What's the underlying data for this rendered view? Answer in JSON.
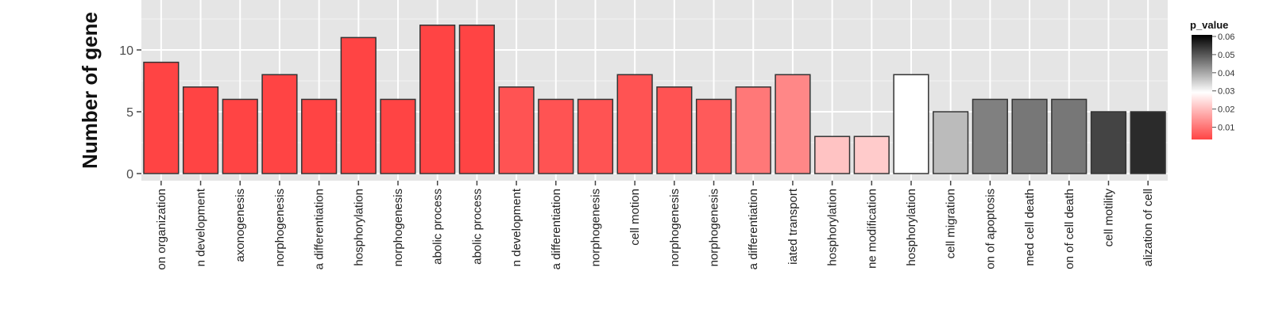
{
  "chart_data": {
    "type": "bar",
    "ylabel": "Number of gene",
    "ylim": [
      0,
      14
    ],
    "y_ticks": [
      0,
      5,
      10
    ],
    "grid": true,
    "legend_placement": "right",
    "categories": [
      "on organization",
      "n development",
      "axonogenesis",
      "norphogenesis",
      "a differentiation",
      "hosphorylation",
      "norphogenesis",
      "abolic process",
      "abolic process",
      "n development",
      "a differentiation",
      "norphogenesis",
      "cell motion",
      "norphogenesis",
      "norphogenesis",
      "a differentiation",
      "iated transport",
      "hosphorylation",
      "ne modification",
      "hosphorylation",
      "cell migration",
      "on of apoptosis",
      "med cell death",
      "on of cell death",
      "cell motility",
      "alization of cell"
    ],
    "values": [
      9,
      7,
      6,
      8,
      6,
      11,
      6,
      12,
      12,
      7,
      6,
      6,
      8,
      7,
      6,
      7,
      8,
      3,
      3,
      8,
      5,
      6,
      6,
      6,
      5,
      5
    ],
    "p_values": [
      0.002,
      0.004,
      0.004,
      0.004,
      0.004,
      0.004,
      0.004,
      0.005,
      0.005,
      0.007,
      0.007,
      0.007,
      0.007,
      0.007,
      0.008,
      0.012,
      0.014,
      0.022,
      0.023,
      0.03,
      0.038,
      0.045,
      0.046,
      0.046,
      0.052,
      0.055
    ],
    "legend": {
      "title": "p_value",
      "ticks": [
        "0.06",
        "0.05",
        "0.04",
        "0.03",
        "0.02",
        "0.01"
      ],
      "range": [
        0.005,
        0.06
      ],
      "colors": [
        "#ff4444",
        "#ffffff",
        "#000000"
      ]
    }
  }
}
